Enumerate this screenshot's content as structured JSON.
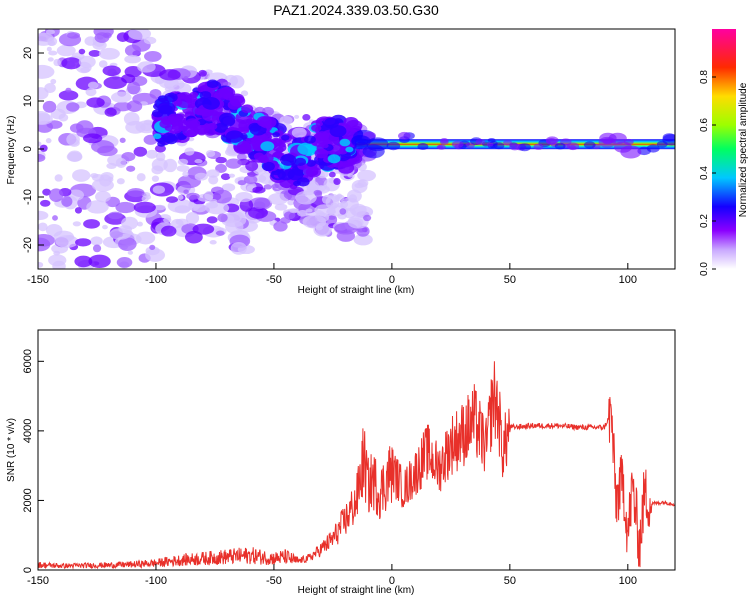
{
  "title": "PAZ1.2024.339.03.50.G30",
  "chart_data": [
    {
      "type": "heatmap",
      "xlabel": "Height of straight line (km)",
      "ylabel": "Frequency (Hz)",
      "xlim": [
        -150,
        120
      ],
      "ylim": [
        -25,
        25
      ],
      "xticks": [
        "-150",
        "-100",
        "-50",
        "0",
        "50",
        "100"
      ],
      "yticks": [
        "-20",
        "-10",
        "0",
        "10",
        "20"
      ],
      "colorbar": {
        "label": "Normalized spectral amplitude",
        "range": [
          0.0,
          1.0
        ],
        "ticks": [
          "0.0",
          "0.2",
          "0.4",
          "0.6",
          "0.8"
        ],
        "colormap": [
          "#ffffff",
          "#8b00ff",
          "#0000ff",
          "#00ffff",
          "#00ff00",
          "#ffff00",
          "#ff0000",
          "#ff00aa"
        ]
      },
      "ridge": {
        "description_points": [
          [
            -100,
            5
          ],
          [
            -75,
            9
          ],
          [
            -50,
            0
          ],
          [
            -40,
            -4
          ],
          [
            -30,
            1
          ],
          [
            -20,
            1
          ],
          [
            -10,
            1
          ],
          [
            0,
            1
          ],
          [
            50,
            1
          ],
          [
            100,
            1
          ],
          [
            120,
            1
          ]
        ]
      }
    },
    {
      "type": "line",
      "xlabel": "Height of straight line (km)",
      "ylabel": "SNR (10 * v/v)",
      "xlim": [
        -150,
        120
      ],
      "ylim": [
        0,
        6900
      ],
      "xticks": [
        "-150",
        "-100",
        "-50",
        "0",
        "50",
        "100"
      ],
      "yticks": [
        "0",
        "2000",
        "4000",
        "6000"
      ],
      "color": "#e8302a",
      "series": [
        {
          "x": [
            -150,
            -140,
            -130,
            -120,
            -110,
            -100,
            -90,
            -80,
            -70,
            -60,
            -50,
            -45,
            -40,
            -35,
            -30,
            -25,
            -20,
            -15,
            -12,
            -10,
            -8,
            -5,
            0,
            5,
            10,
            15,
            20,
            25,
            30,
            35,
            40,
            43,
            45,
            47,
            50,
            60,
            70,
            80,
            90,
            93,
            95,
            98,
            100,
            102,
            105,
            107,
            110,
            115,
            120
          ],
          "values": [
            150,
            120,
            130,
            140,
            160,
            200,
            280,
            330,
            380,
            420,
            330,
            380,
            250,
            350,
            600,
            900,
            1400,
            2000,
            3200,
            2400,
            2600,
            2200,
            2900,
            2300,
            2800,
            3400,
            2900,
            3600,
            3900,
            4300,
            3500,
            5000,
            4600,
            3400,
            4100,
            4150,
            4150,
            4100,
            4100,
            4500,
            2000,
            2600,
            1000,
            2400,
            700,
            2200,
            1900,
            1950,
            1900
          ]
        }
      ]
    }
  ]
}
